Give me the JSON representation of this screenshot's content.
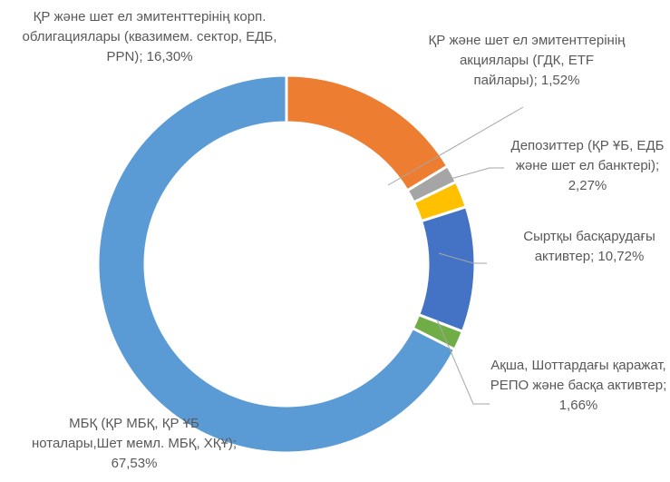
{
  "chart_data": {
    "type": "pie",
    "categories": [
      "ҚР және шет ел эмитенттерінің корп. облигациялары (квазимем. сектор, ЕДБ, PPN)",
      "ҚР және шет ел эмитенттерінің акциялары (ГДК, ETF пайлары)",
      "Депозиттер (ҚР ҰБ, ЕДБ және шет ел банктері)",
      "Сыртқы басқарудағы активтер",
      "Ақша, Шоттардағы қаражат, РЕПО және басқа активтер",
      "МБҚ (ҚР МБҚ, ҚР ҰБ ноталары,Шет мемл. МБҚ, ХҚҰ)"
    ],
    "values": [
      16.3,
      1.52,
      2.27,
      10.72,
      1.66,
      67.53
    ],
    "value_labels": [
      "16,30%",
      "1,52%",
      "2,27%",
      "10,72%",
      "1,66%",
      "67,53%"
    ],
    "label_separator": "; ",
    "colors": [
      "#ED7D31",
      "#A5A5A5",
      "#FFC000",
      "#4472C4",
      "#70AD47",
      "#5B9BD5"
    ],
    "donut": true
  }
}
